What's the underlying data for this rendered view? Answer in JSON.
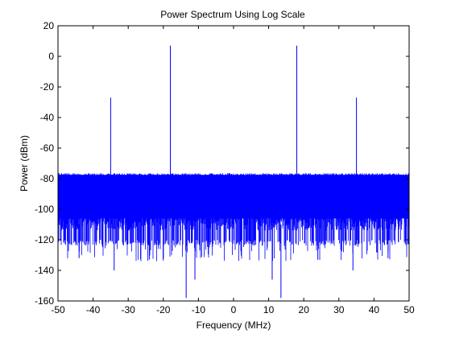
{
  "chart_data": {
    "type": "line",
    "title": "Power Spectrum Using Log Scale",
    "xlabel": "Frequency (MHz)",
    "ylabel": "Power (dBm)",
    "xlim": [
      -50,
      50
    ],
    "ylim": [
      -160,
      20
    ],
    "xticks": [
      -50,
      -40,
      -30,
      -20,
      -10,
      0,
      10,
      20,
      30,
      40,
      50
    ],
    "yticks": [
      -160,
      -140,
      -120,
      -100,
      -80,
      -60,
      -40,
      -20,
      0,
      20
    ],
    "grid": false,
    "series": [
      {
        "color": "#0000ff",
        "noise_floor": {
          "upper_dbm": -78,
          "typical_lower_dbm": -120,
          "deep_nulls_min_dbm": -158
        },
        "peaks": [
          {
            "x": -35,
            "y": -27
          },
          {
            "x": -18,
            "y": 7
          },
          {
            "x": 18,
            "y": 7
          },
          {
            "x": 35,
            "y": -27
          }
        ],
        "nulls": [
          {
            "x": -13.5,
            "y": -158
          },
          {
            "x": -11,
            "y": -146
          },
          {
            "x": 11,
            "y": -146
          },
          {
            "x": 13.5,
            "y": -158
          },
          {
            "x": -34,
            "y": -140
          },
          {
            "x": 34,
            "y": -140
          },
          {
            "x": -44,
            "y": -132
          },
          {
            "x": 44,
            "y": -132
          },
          {
            "x": -24,
            "y": -133
          },
          {
            "x": 24,
            "y": -133
          }
        ]
      }
    ]
  }
}
